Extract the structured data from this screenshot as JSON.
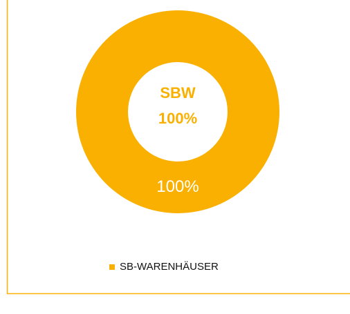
{
  "chart_data": {
    "type": "pie",
    "donut": true,
    "center_title": "SBW",
    "categories": [
      "SB-WARENHÄUSER"
    ],
    "values": [
      100
    ],
    "value_labels": [
      "100%"
    ],
    "colors": [
      "#f9b000"
    ],
    "legend": "bottom"
  }
}
